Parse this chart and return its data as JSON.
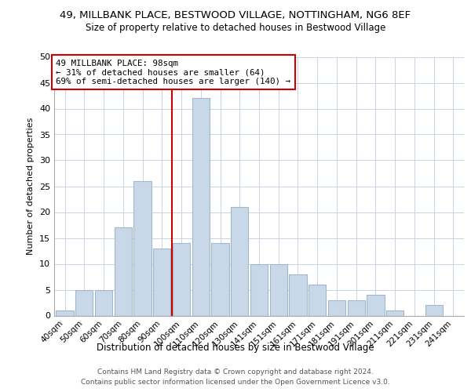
{
  "title": "49, MILLBANK PLACE, BESTWOOD VILLAGE, NOTTINGHAM, NG6 8EF",
  "subtitle": "Size of property relative to detached houses in Bestwood Village",
  "xlabel": "Distribution of detached houses by size in Bestwood Village",
  "ylabel": "Number of detached properties",
  "bar_color": "#c8d8e8",
  "bar_edge_color": "#a0b8cc",
  "categories": [
    "40sqm",
    "50sqm",
    "60sqm",
    "70sqm",
    "80sqm",
    "90sqm",
    "100sqm",
    "110sqm",
    "120sqm",
    "130sqm",
    "141sqm",
    "151sqm",
    "161sqm",
    "171sqm",
    "181sqm",
    "191sqm",
    "201sqm",
    "211sqm",
    "221sqm",
    "231sqm",
    "241sqm"
  ],
  "values": [
    1,
    5,
    5,
    17,
    26,
    13,
    14,
    42,
    14,
    21,
    10,
    10,
    8,
    6,
    3,
    3,
    4,
    1,
    0,
    2,
    0
  ],
  "ylim": [
    0,
    50
  ],
  "yticks": [
    0,
    5,
    10,
    15,
    20,
    25,
    30,
    35,
    40,
    45,
    50
  ],
  "vline_color": "#cc0000",
  "annotation_text": "49 MILLBANK PLACE: 98sqm\n← 31% of detached houses are smaller (64)\n69% of semi-detached houses are larger (140) →",
  "annotation_box_color": "white",
  "annotation_box_edge_color": "#cc0000",
  "footer_line1": "Contains HM Land Registry data © Crown copyright and database right 2024.",
  "footer_line2": "Contains public sector information licensed under the Open Government Licence v3.0.",
  "background_color": "white",
  "grid_color": "#c8d4e4"
}
